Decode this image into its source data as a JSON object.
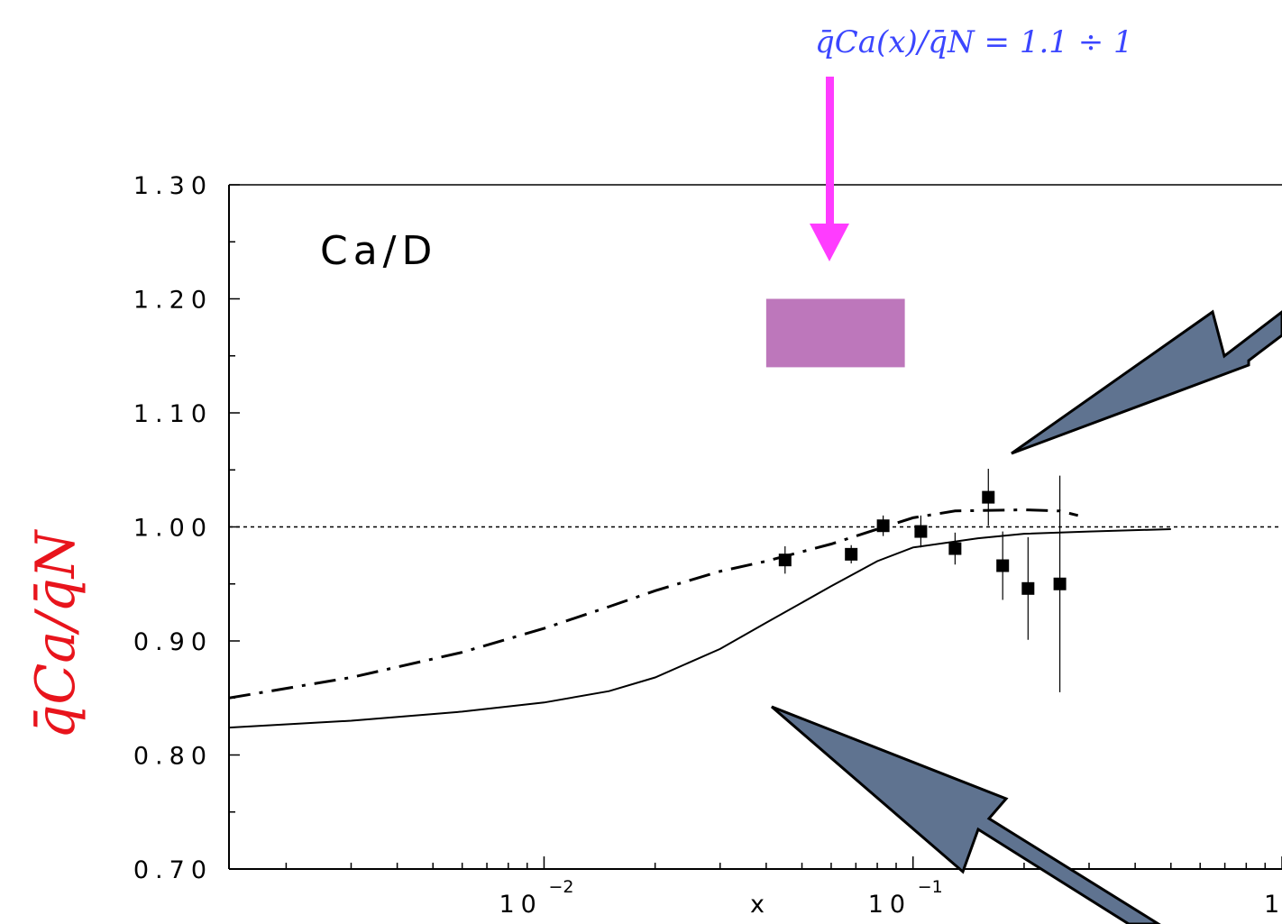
{
  "chart_data": {
    "type": "scatter",
    "title": "",
    "panel_label": "Ca/D",
    "xlabel": "x",
    "ylabel": "q̄Ca/q̄N",
    "xscale": "log",
    "xlim": [
      0.0014,
      1.0
    ],
    "ylim": [
      0.7,
      1.3
    ],
    "yticks": [
      "1.30",
      "1.20",
      "1.10",
      "1.00",
      "0.90",
      "0.80",
      "0.70"
    ],
    "xticks": [
      {
        "base": "10",
        "exp": "−2"
      },
      {
        "base": "10",
        "exp": "−1"
      },
      {
        "base": "1",
        "exp": ""
      }
    ],
    "grid": false,
    "reference_line_y": 1.0,
    "data_points": [
      {
        "x": 0.045,
        "y": 0.971,
        "err": 0.012
      },
      {
        "x": 0.068,
        "y": 0.976,
        "err": 0.008
      },
      {
        "x": 0.083,
        "y": 1.001,
        "err": 0.009
      },
      {
        "x": 0.105,
        "y": 0.996,
        "err": 0.014
      },
      {
        "x": 0.13,
        "y": 0.981,
        "err": 0.014
      },
      {
        "x": 0.16,
        "y": 1.026,
        "err": 0.025
      },
      {
        "x": 0.175,
        "y": 0.966,
        "err": 0.03
      },
      {
        "x": 0.205,
        "y": 0.946,
        "err": 0.045
      },
      {
        "x": 0.25,
        "y": 0.95,
        "err": 0.095
      }
    ],
    "series": [
      {
        "style": "solid",
        "x": [
          0.0014,
          0.003,
          0.006,
          0.01,
          0.015,
          0.02,
          0.03,
          0.04,
          0.06,
          0.08,
          0.1,
          0.15,
          0.2,
          0.3,
          0.5
        ],
        "y": [
          0.824,
          0.83,
          0.838,
          0.846,
          0.856,
          0.868,
          0.893,
          0.916,
          0.948,
          0.97,
          0.982,
          0.99,
          0.994,
          0.996,
          0.998
        ]
      },
      {
        "style": "dash-dot",
        "x": [
          0.0014,
          0.003,
          0.006,
          0.01,
          0.015,
          0.02,
          0.03,
          0.04,
          0.06,
          0.08,
          0.1,
          0.13,
          0.2,
          0.25,
          0.28
        ],
        "y": [
          0.85,
          0.868,
          0.89,
          0.911,
          0.93,
          0.944,
          0.961,
          0.97,
          0.985,
          0.998,
          1.008,
          1.014,
          1.015,
          1.014,
          1.01
        ]
      }
    ],
    "highlight_band": {
      "x": [
        0.04,
        0.095
      ],
      "y": [
        1.14,
        1.2
      ],
      "color": "#bd77bb"
    },
    "annotation": {
      "text": "q̄Ca(x)/q̄N = 1.1 ÷ 1",
      "color": "#3b46ff",
      "arrow_color": "#ff3cff"
    },
    "arrow_fill": "#5f7390"
  }
}
